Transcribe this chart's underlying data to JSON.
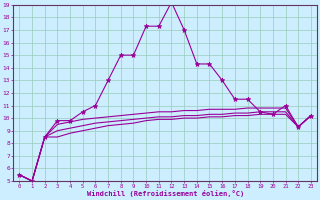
{
  "xlabel": "Windchill (Refroidissement éolien,°C)",
  "bg_color": "#b3eedd",
  "plot_bg_color": "#cceeff",
  "grid_color": "#99ccbb",
  "line_color": "#990099",
  "spine_color": "#663366",
  "xlim": [
    -0.5,
    23.5
  ],
  "ylim": [
    5,
    19
  ],
  "yticks": [
    5,
    6,
    7,
    8,
    9,
    10,
    11,
    12,
    13,
    14,
    15,
    16,
    17,
    18,
    19
  ],
  "xticks": [
    0,
    1,
    2,
    3,
    4,
    5,
    6,
    7,
    8,
    9,
    10,
    11,
    12,
    13,
    14,
    15,
    16,
    17,
    18,
    19,
    20,
    21,
    22,
    23
  ],
  "series1_x": [
    0,
    1,
    2,
    3,
    4,
    5,
    6,
    7,
    8,
    9,
    10,
    11,
    12,
    13,
    14,
    15,
    16,
    17,
    18,
    19,
    20,
    21,
    22,
    23
  ],
  "series1_y": [
    5.5,
    5.0,
    8.5,
    9.8,
    9.8,
    10.5,
    11.0,
    13.0,
    15.0,
    15.0,
    17.3,
    17.3,
    19.2,
    17.0,
    14.3,
    14.3,
    13.0,
    11.5,
    11.5,
    10.5,
    10.3,
    11.0,
    9.3,
    10.2
  ],
  "series2_x": [
    0,
    1,
    2,
    3,
    4,
    5,
    6,
    7,
    8,
    9,
    10,
    11,
    12,
    13,
    14,
    15,
    16,
    17,
    18,
    19,
    20,
    21,
    22,
    23
  ],
  "series2_y": [
    5.5,
    5.0,
    8.5,
    9.5,
    9.7,
    9.9,
    10.0,
    10.1,
    10.2,
    10.3,
    10.4,
    10.5,
    10.5,
    10.6,
    10.6,
    10.7,
    10.7,
    10.7,
    10.8,
    10.8,
    10.8,
    10.8,
    9.3,
    10.2
  ],
  "series3_x": [
    0,
    1,
    2,
    3,
    4,
    5,
    6,
    7,
    8,
    9,
    10,
    11,
    12,
    13,
    14,
    15,
    16,
    17,
    18,
    19,
    20,
    21,
    22,
    23
  ],
  "series3_y": [
    5.5,
    5.0,
    8.5,
    9.0,
    9.2,
    9.4,
    9.6,
    9.7,
    9.8,
    9.9,
    10.0,
    10.1,
    10.1,
    10.2,
    10.2,
    10.3,
    10.3,
    10.4,
    10.4,
    10.5,
    10.5,
    10.5,
    9.3,
    10.2
  ],
  "series4_x": [
    0,
    1,
    2,
    3,
    4,
    5,
    6,
    7,
    8,
    9,
    10,
    11,
    12,
    13,
    14,
    15,
    16,
    17,
    18,
    19,
    20,
    21,
    22,
    23
  ],
  "series4_y": [
    5.5,
    5.0,
    8.5,
    8.5,
    8.8,
    9.0,
    9.2,
    9.4,
    9.5,
    9.6,
    9.8,
    9.9,
    9.9,
    10.0,
    10.0,
    10.1,
    10.1,
    10.2,
    10.2,
    10.3,
    10.3,
    10.3,
    9.3,
    10.2
  ]
}
